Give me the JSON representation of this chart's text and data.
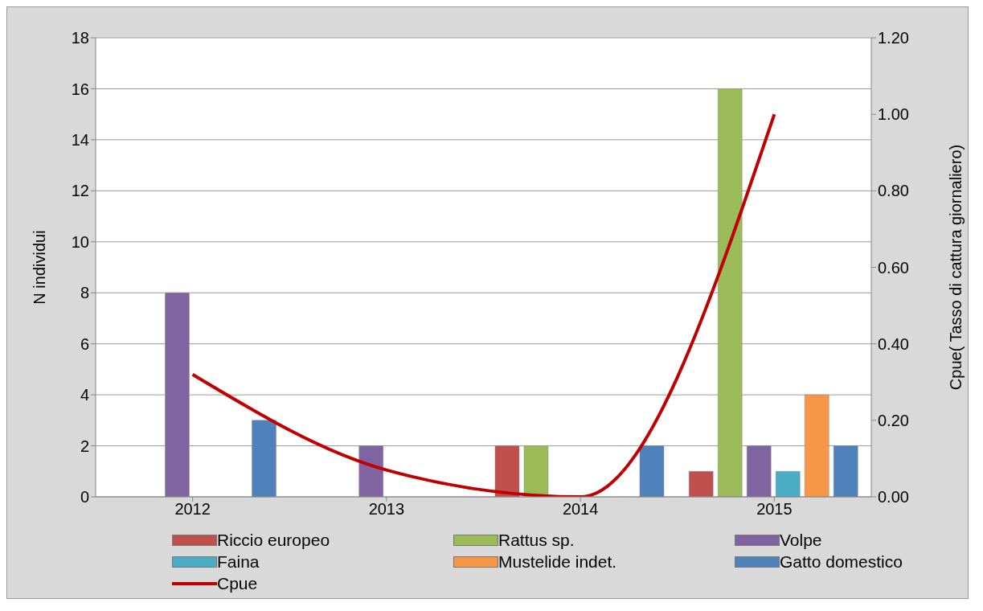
{
  "chart_data": {
    "type": "bar",
    "categories": [
      "2012",
      "2013",
      "2014",
      "2015"
    ],
    "ylabel": "N individui",
    "y2label": "Cpue( Tasso di cattura giornaliero)",
    "series": [
      {
        "name": "Riccio europeo",
        "color": "#c0504d",
        "values": [
          0,
          0,
          2,
          1
        ]
      },
      {
        "name": "Rattus sp.",
        "color": "#9bbb59",
        "values": [
          0,
          0,
          2,
          16
        ]
      },
      {
        "name": "Volpe",
        "color": "#8064a2",
        "values": [
          8,
          2,
          0,
          2
        ]
      },
      {
        "name": "Faina",
        "color": "#4bacc6",
        "values": [
          0,
          0,
          0,
          1
        ]
      },
      {
        "name": "Mustelide indet.",
        "color": "#f79646",
        "values": [
          0,
          0,
          0,
          4
        ]
      },
      {
        "name": "Gatto domestico",
        "color": "#4f81bd",
        "values": [
          3,
          0,
          2,
          2
        ]
      },
      {
        "name": "Cpue",
        "type": "line",
        "axis": "y2",
        "color": "#c00000",
        "values": [
          0.32,
          0.07,
          0,
          1
        ]
      }
    ],
    "ylim": [
      0,
      18
    ],
    "yticks": [
      0,
      2,
      4,
      6,
      8,
      10,
      12,
      14,
      16,
      18
    ],
    "y2lim": [
      0,
      1.2
    ],
    "y2ticks": [
      {
        "value": 0,
        "label": "0.00"
      },
      {
        "value": 0.2,
        "label": "0.20"
      },
      {
        "value": 0.4,
        "label": "0.40"
      },
      {
        "value": 0.6,
        "label": "0.60"
      },
      {
        "value": 0.8,
        "label": "0.80"
      },
      {
        "value": 1,
        "label": "1.00"
      },
      {
        "value": 1.2,
        "label": "1.20"
      }
    ],
    "grid": "y",
    "legend": "bottom",
    "marker": "none",
    "line_style": "solid"
  }
}
